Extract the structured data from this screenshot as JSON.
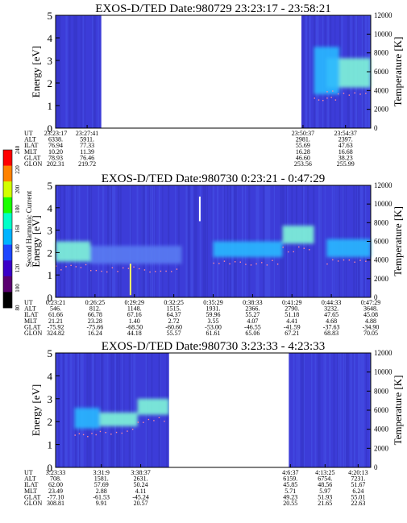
{
  "colors": {
    "background": "#3c3cd8",
    "band_light": "#5a7cf2",
    "band_mid": "#2ab8ff",
    "band_hot": "#7ff5d8",
    "temperature_dots": "#ff8aa0",
    "datagap": "#ffffff"
  },
  "colorbar": {
    "label": "Second Harmonic Current",
    "ticks": [
      "80",
      "100",
      "120",
      "140",
      "160",
      "180",
      "200",
      "220",
      "240"
    ],
    "colors": [
      "#000000",
      "#5a0070",
      "#3a00c8",
      "#1e46ff",
      "#00b4ff",
      "#00ffc8",
      "#19ff00",
      "#d2ff00",
      "#ff8200",
      "#ff0000"
    ]
  },
  "chart_data": [
    {
      "type": "heatmap",
      "title": "EXOS-D/TED   Date:980729  23:23:17 - 23:58:21",
      "ylabel": "Energy [eV]",
      "ylim": [
        0,
        5
      ],
      "yticks": [
        "0",
        "1",
        "2",
        "3",
        "4",
        "5"
      ],
      "y2label": "Temperature [K]",
      "y2lim": [
        0,
        12000
      ],
      "y2ticks": [
        "0",
        "2000",
        "4000",
        "6000",
        "8000",
        "10000",
        "12000"
      ],
      "gaps": [
        [
          0.145,
          0.78
        ]
      ],
      "bands": [
        {
          "x0": 0.86,
          "x1": 1.0,
          "y0": 1.8,
          "y1": 3.1,
          "level": "hot"
        },
        {
          "x0": 0.82,
          "x1": 0.9,
          "y0": 1.5,
          "y1": 3.6,
          "level": "mid"
        }
      ],
      "ephemeris": {
        "labels": [
          "UT",
          "ALT",
          "ILAT",
          "MLT",
          "GLAT",
          "GLON"
        ],
        "columns": [
          {
            "pos": 0.0,
            "values": [
              "23:23:17",
              "6338.",
              "76.94",
              "10.20",
              "78.93",
              "202.31"
            ]
          },
          {
            "pos": 0.1,
            "values": [
              "23:27:41",
              "5911.",
              "77.33",
              "11.39",
              "76.46",
              "219.72"
            ]
          },
          {
            "pos": 0.785,
            "values": [
              "23:50:37",
              "2981.",
              "55.69",
              "16.28",
              "46.60",
              "253.56"
            ]
          },
          {
            "pos": 0.92,
            "values": [
              "23:54:37",
              "2397.",
              "47.63",
              "16.68",
              "38.23",
              "255.99"
            ]
          }
        ]
      }
    },
    {
      "type": "heatmap",
      "title": "EXOS-D/TED   Date:980730  0:23:21 - 0:47:29",
      "ylabel": "Energy [eV]",
      "ylim": [
        0,
        5
      ],
      "yticks": [
        "0",
        "1",
        "2",
        "3",
        "4",
        "5"
      ],
      "y2label": "Temperature [K]",
      "y2lim": [
        0,
        12000
      ],
      "y2ticks": [
        "0",
        "2000",
        "4000",
        "6000",
        "8000",
        "10000",
        "12000"
      ],
      "gaps": [],
      "bands": [
        {
          "x0": 0.0,
          "x1": 0.11,
          "y0": 1.6,
          "y1": 2.5,
          "level": "hot"
        },
        {
          "x0": 0.11,
          "x1": 0.4,
          "y0": 1.5,
          "y1": 2.3,
          "level": "light"
        },
        {
          "x0": 0.5,
          "x1": 0.72,
          "y0": 1.8,
          "y1": 2.5,
          "level": "mid"
        },
        {
          "x0": 0.72,
          "x1": 0.82,
          "y0": 2.4,
          "y1": 3.2,
          "level": "hot"
        },
        {
          "x0": 0.86,
          "x1": 1.0,
          "y0": 1.8,
          "y1": 2.6,
          "level": "mid"
        }
      ],
      "ephemeris": {
        "labels": [
          "UT",
          "ALT",
          "ILAT",
          "MLT",
          "GLAT",
          "GLON"
        ],
        "columns": [
          {
            "pos": 0.0,
            "values": [
              "0:23:21",
              "546.",
              "61.66",
              "21.21",
              "-75.92",
              "324.82"
            ]
          },
          {
            "pos": 0.125,
            "values": [
              "0:26:25",
              "812.",
              "66.78",
              "23.28",
              "-75.66",
              "16.24"
            ]
          },
          {
            "pos": 0.25,
            "values": [
              "0:29:29",
              "1148.",
              "67.16",
              "1.40",
              "-68.50",
              "44.18"
            ]
          },
          {
            "pos": 0.375,
            "values": [
              "0:32:25",
              "1515.",
              "64.37",
              "2.72",
              "-60.60",
              "55.57"
            ]
          },
          {
            "pos": 0.5,
            "values": [
              "0:35:29",
              "1931.",
              "59.96",
              "3.55",
              "-53.00",
              "61.61"
            ]
          },
          {
            "pos": 0.625,
            "values": [
              "0:38:33",
              "2366.",
              "55.27",
              "4.07",
              "-46.55",
              "65.06"
            ]
          },
          {
            "pos": 0.75,
            "values": [
              "0:41:29",
              "2790.",
              "51.18",
              "4.41",
              "-41.59",
              "67.21"
            ]
          },
          {
            "pos": 0.875,
            "values": [
              "0:44:33",
              "3232.",
              "47.65",
              "4.68",
              "-37.63",
              "68.83"
            ]
          },
          {
            "pos": 1.0,
            "values": [
              "0:47:29",
              "3648.",
              "45.08",
              "4.88",
              "-34.90",
              "70.05"
            ]
          }
        ]
      }
    },
    {
      "type": "heatmap",
      "title": "EXOS-D/TED   Date:980730  3:23:33 - 4:23:33",
      "ylabel": "Energy [eV]",
      "ylim": [
        0,
        5
      ],
      "yticks": [
        "0",
        "1",
        "2",
        "3",
        "4",
        "5"
      ],
      "y2label": "Temperature [K]",
      "y2lim": [
        0,
        12000
      ],
      "y2ticks": [
        "0",
        "2000",
        "4000",
        "6000",
        "8000",
        "10000",
        "12000"
      ],
      "gaps": [
        [
          0.36,
          0.74
        ]
      ],
      "bands": [
        {
          "x0": 0.06,
          "x1": 0.14,
          "y0": 1.7,
          "y1": 2.6,
          "level": "mid"
        },
        {
          "x0": 0.14,
          "x1": 0.26,
          "y0": 1.8,
          "y1": 2.4,
          "level": "hot"
        },
        {
          "x0": 0.26,
          "x1": 0.36,
          "y0": 2.3,
          "y1": 3.0,
          "level": "hot"
        }
      ],
      "ephemeris": {
        "labels": [
          "UT",
          "ALT",
          "ILAT",
          "MLT",
          "GLAT",
          "GLON"
        ],
        "columns": [
          {
            "pos": 0.0,
            "values": [
              "3:23:33",
              "708.",
              "62.00",
              "23.49",
              "-77.10",
              "308.81"
            ]
          },
          {
            "pos": 0.145,
            "values": [
              "3:31:9",
              "1581.",
              "57.69",
              "2.88",
              "-61.53",
              "9.91"
            ]
          },
          {
            "pos": 0.27,
            "values": [
              "3:38:37",
              "2631.",
              "50.24",
              "4.11",
              "-45.24",
              "20.57"
            ]
          },
          {
            "pos": 0.745,
            "values": [
              "4:6:37",
              "6159.",
              "45.85",
              "5.71",
              "49.23",
              "20.55"
            ]
          },
          {
            "pos": 0.855,
            "values": [
              "4:13:25",
              "6754.",
              "48.56",
              "5.97",
              "51.93",
              "21.65"
            ]
          },
          {
            "pos": 0.96,
            "values": [
              "4:20:13",
              "7231.",
              "51.67",
              "6.24",
              "55.01",
              "22.63"
            ]
          }
        ]
      }
    }
  ]
}
